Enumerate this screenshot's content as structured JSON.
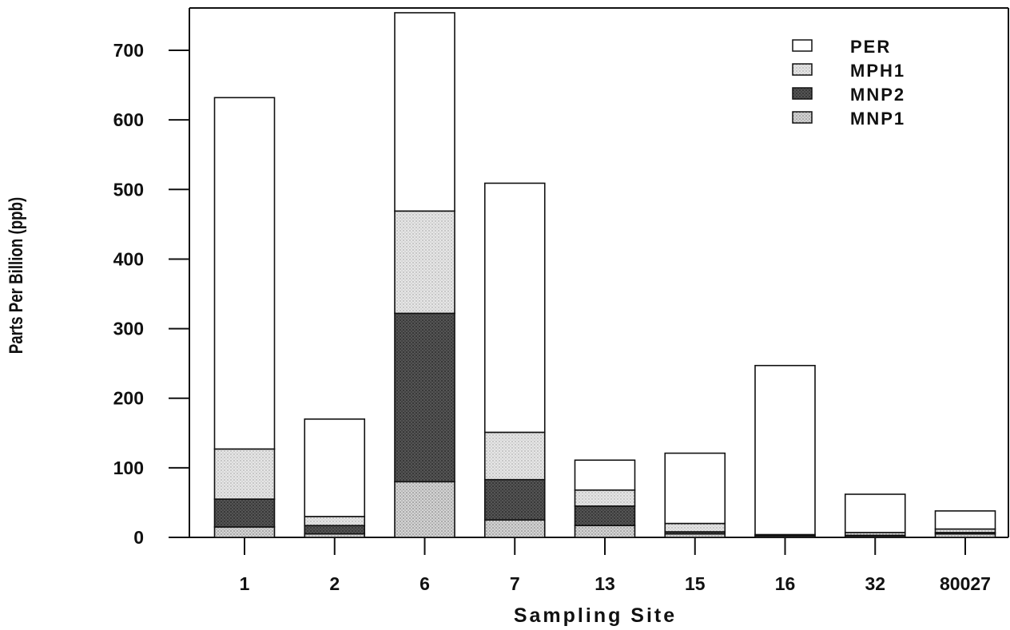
{
  "chart_data": {
    "type": "bar",
    "stacked": true,
    "title": "",
    "xlabel": "Sampling Site",
    "ylabel": "Parts Per Billion (ppb)",
    "categories": [
      "1",
      "2",
      "6",
      "7",
      "13",
      "15",
      "16",
      "32",
      "80027"
    ],
    "ylim": [
      0,
      750
    ],
    "yticks": [
      0,
      100,
      200,
      300,
      400,
      500,
      600,
      700
    ],
    "legend_position": "top-right",
    "series": [
      {
        "name": "MNP1",
        "values": [
          15,
          5,
          80,
          25,
          17,
          5,
          2,
          2,
          5
        ],
        "fill": "#b8b8b8",
        "pattern": "fine-dots"
      },
      {
        "name": "MNP2",
        "values": [
          40,
          12,
          242,
          58,
          28,
          3,
          2,
          1,
          2
        ],
        "fill": "#6a6a6a",
        "pattern": "dense-dots"
      },
      {
        "name": "MPH1",
        "values": [
          72,
          13,
          147,
          68,
          23,
          12,
          0,
          4,
          5
        ],
        "fill": "#d6d6d6",
        "pattern": "light-dots"
      },
      {
        "name": "PER",
        "values": [
          505,
          140,
          285,
          358,
          43,
          101,
          243,
          55,
          26
        ],
        "fill": "#ffffff",
        "pattern": "none"
      }
    ]
  }
}
